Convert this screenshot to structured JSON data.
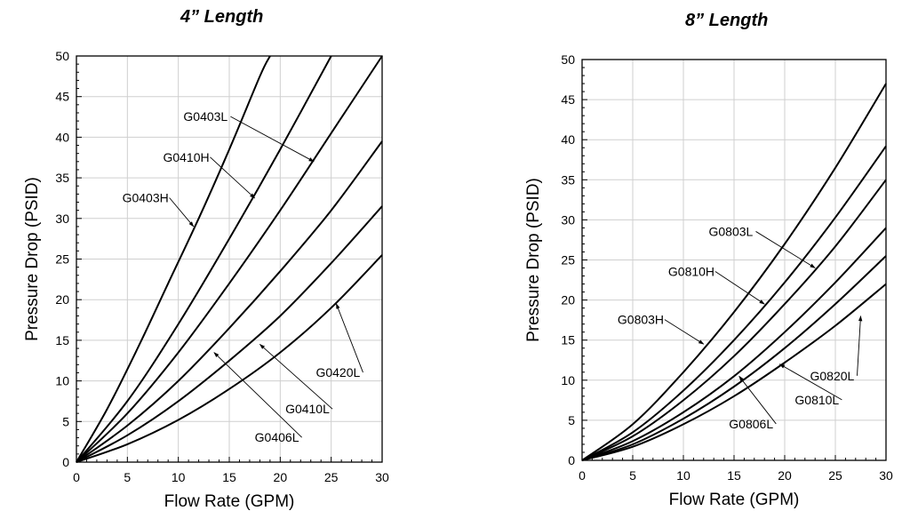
{
  "chart_data": [
    {
      "type": "line",
      "title": "4” Length",
      "xlabel": "Flow Rate (GPM)",
      "ylabel": "Pressure Drop (PSID)",
      "xlim": [
        0,
        30
      ],
      "ylim": [
        0,
        50
      ],
      "xticks": [
        0,
        5,
        10,
        15,
        20,
        25,
        30
      ],
      "yticks": [
        0,
        5,
        10,
        15,
        20,
        25,
        30,
        35,
        40,
        45,
        50
      ],
      "grid": true,
      "series": [
        {
          "name": "G0403H",
          "x": [
            0,
            3,
            6,
            9,
            12,
            15,
            18,
            19
          ],
          "y": [
            0,
            6.5,
            14,
            22,
            30,
            38.5,
            47.5,
            50
          ]
        },
        {
          "name": "G0410H",
          "x": [
            0,
            5,
            10,
            15,
            20,
            25
          ],
          "y": [
            0,
            7.5,
            17,
            27.5,
            38.5,
            50
          ]
        },
        {
          "name": "G0403L",
          "x": [
            0,
            5,
            10,
            15,
            20,
            25,
            30
          ],
          "y": [
            0,
            6,
            13.5,
            22,
            31,
            40.5,
            50
          ]
        },
        {
          "name": "G0406L",
          "x": [
            0,
            5,
            10,
            15,
            20,
            25,
            30
          ],
          "y": [
            0,
            4.5,
            10,
            16.5,
            23.5,
            31,
            39.5
          ]
        },
        {
          "name": "G0410L",
          "x": [
            0,
            5,
            10,
            15,
            20,
            25,
            30
          ],
          "y": [
            0,
            3.3,
            7.5,
            12.5,
            18,
            24.5,
            31.5
          ]
        },
        {
          "name": "G0420L",
          "x": [
            0,
            5,
            10,
            15,
            20,
            25,
            30
          ],
          "y": [
            0,
            2.2,
            5.2,
            9,
            13.5,
            19,
            25.5
          ]
        }
      ],
      "annotations": [
        {
          "text": "G0403L",
          "x": 10.5,
          "y": 42,
          "target": [
            23.3,
            37
          ]
        },
        {
          "text": "G0410H",
          "x": 8.5,
          "y": 37,
          "target": [
            17.5,
            32.5
          ]
        },
        {
          "text": "G0403H",
          "x": 4.5,
          "y": 32,
          "target": [
            11.5,
            29
          ]
        },
        {
          "text": "G0420L",
          "x": 23.5,
          "y": 10.5,
          "target": [
            25.5,
            19.5
          ]
        },
        {
          "text": "G0410L",
          "x": 20.5,
          "y": 6,
          "target": [
            18,
            14.5
          ]
        },
        {
          "text": "G0406L",
          "x": 17.5,
          "y": 2.5,
          "target": [
            13.5,
            13.5
          ]
        }
      ]
    },
    {
      "type": "line",
      "title": "8” Length",
      "xlabel": "Flow Rate (GPM)",
      "ylabel": "Pressure Drop (PSID)",
      "xlim": [
        0,
        30
      ],
      "ylim": [
        0,
        50
      ],
      "xticks": [
        0,
        5,
        10,
        15,
        20,
        25,
        30
      ],
      "yticks": [
        0,
        5,
        10,
        15,
        20,
        25,
        30,
        35,
        40,
        45,
        50
      ],
      "grid": true,
      "series": [
        {
          "name": "G0803H",
          "x": [
            0,
            5,
            10,
            15,
            20,
            25,
            30
          ],
          "y": [
            0,
            4.5,
            11,
            18.5,
            27,
            36.5,
            47
          ]
        },
        {
          "name": "G0810H",
          "x": [
            0,
            5,
            10,
            15,
            20,
            25,
            30
          ],
          "y": [
            0,
            3.5,
            8.7,
            15,
            22.2,
            30.3,
            39.2
          ]
        },
        {
          "name": "G0803L",
          "x": [
            0,
            5,
            10,
            15,
            20,
            25,
            30
          ],
          "y": [
            0,
            3,
            7.5,
            13,
            19.5,
            26.7,
            35
          ]
        },
        {
          "name": "G0806L",
          "x": [
            0,
            5,
            10,
            15,
            20,
            25,
            30
          ],
          "y": [
            0,
            2.4,
            6,
            10.5,
            16,
            22.2,
            29
          ]
        },
        {
          "name": "G0810L",
          "x": [
            0,
            5,
            10,
            15,
            20,
            25,
            30
          ],
          "y": [
            0,
            2,
            5.2,
            9.2,
            14,
            19.5,
            25.5
          ]
        },
        {
          "name": "G0820L",
          "x": [
            0,
            5,
            10,
            15,
            20,
            25,
            30
          ],
          "y": [
            0,
            1.7,
            4.5,
            8,
            12.2,
            16.8,
            22
          ]
        }
      ],
      "annotations": [
        {
          "text": "G0803L",
          "x": 12.5,
          "y": 28,
          "target": [
            23,
            24
          ]
        },
        {
          "text": "G0810H",
          "x": 8.5,
          "y": 23,
          "target": [
            18,
            19.5
          ]
        },
        {
          "text": "G0803H",
          "x": 3.5,
          "y": 17,
          "target": [
            12,
            14.5
          ]
        },
        {
          "text": "G0820L",
          "x": 22.5,
          "y": 10,
          "target": [
            27.5,
            18
          ]
        },
        {
          "text": "G0810L",
          "x": 21,
          "y": 7,
          "target": [
            19.5,
            12
          ]
        },
        {
          "text": "G0806L",
          "x": 14.5,
          "y": 4,
          "target": [
            15.5,
            10.5
          ]
        }
      ]
    }
  ]
}
